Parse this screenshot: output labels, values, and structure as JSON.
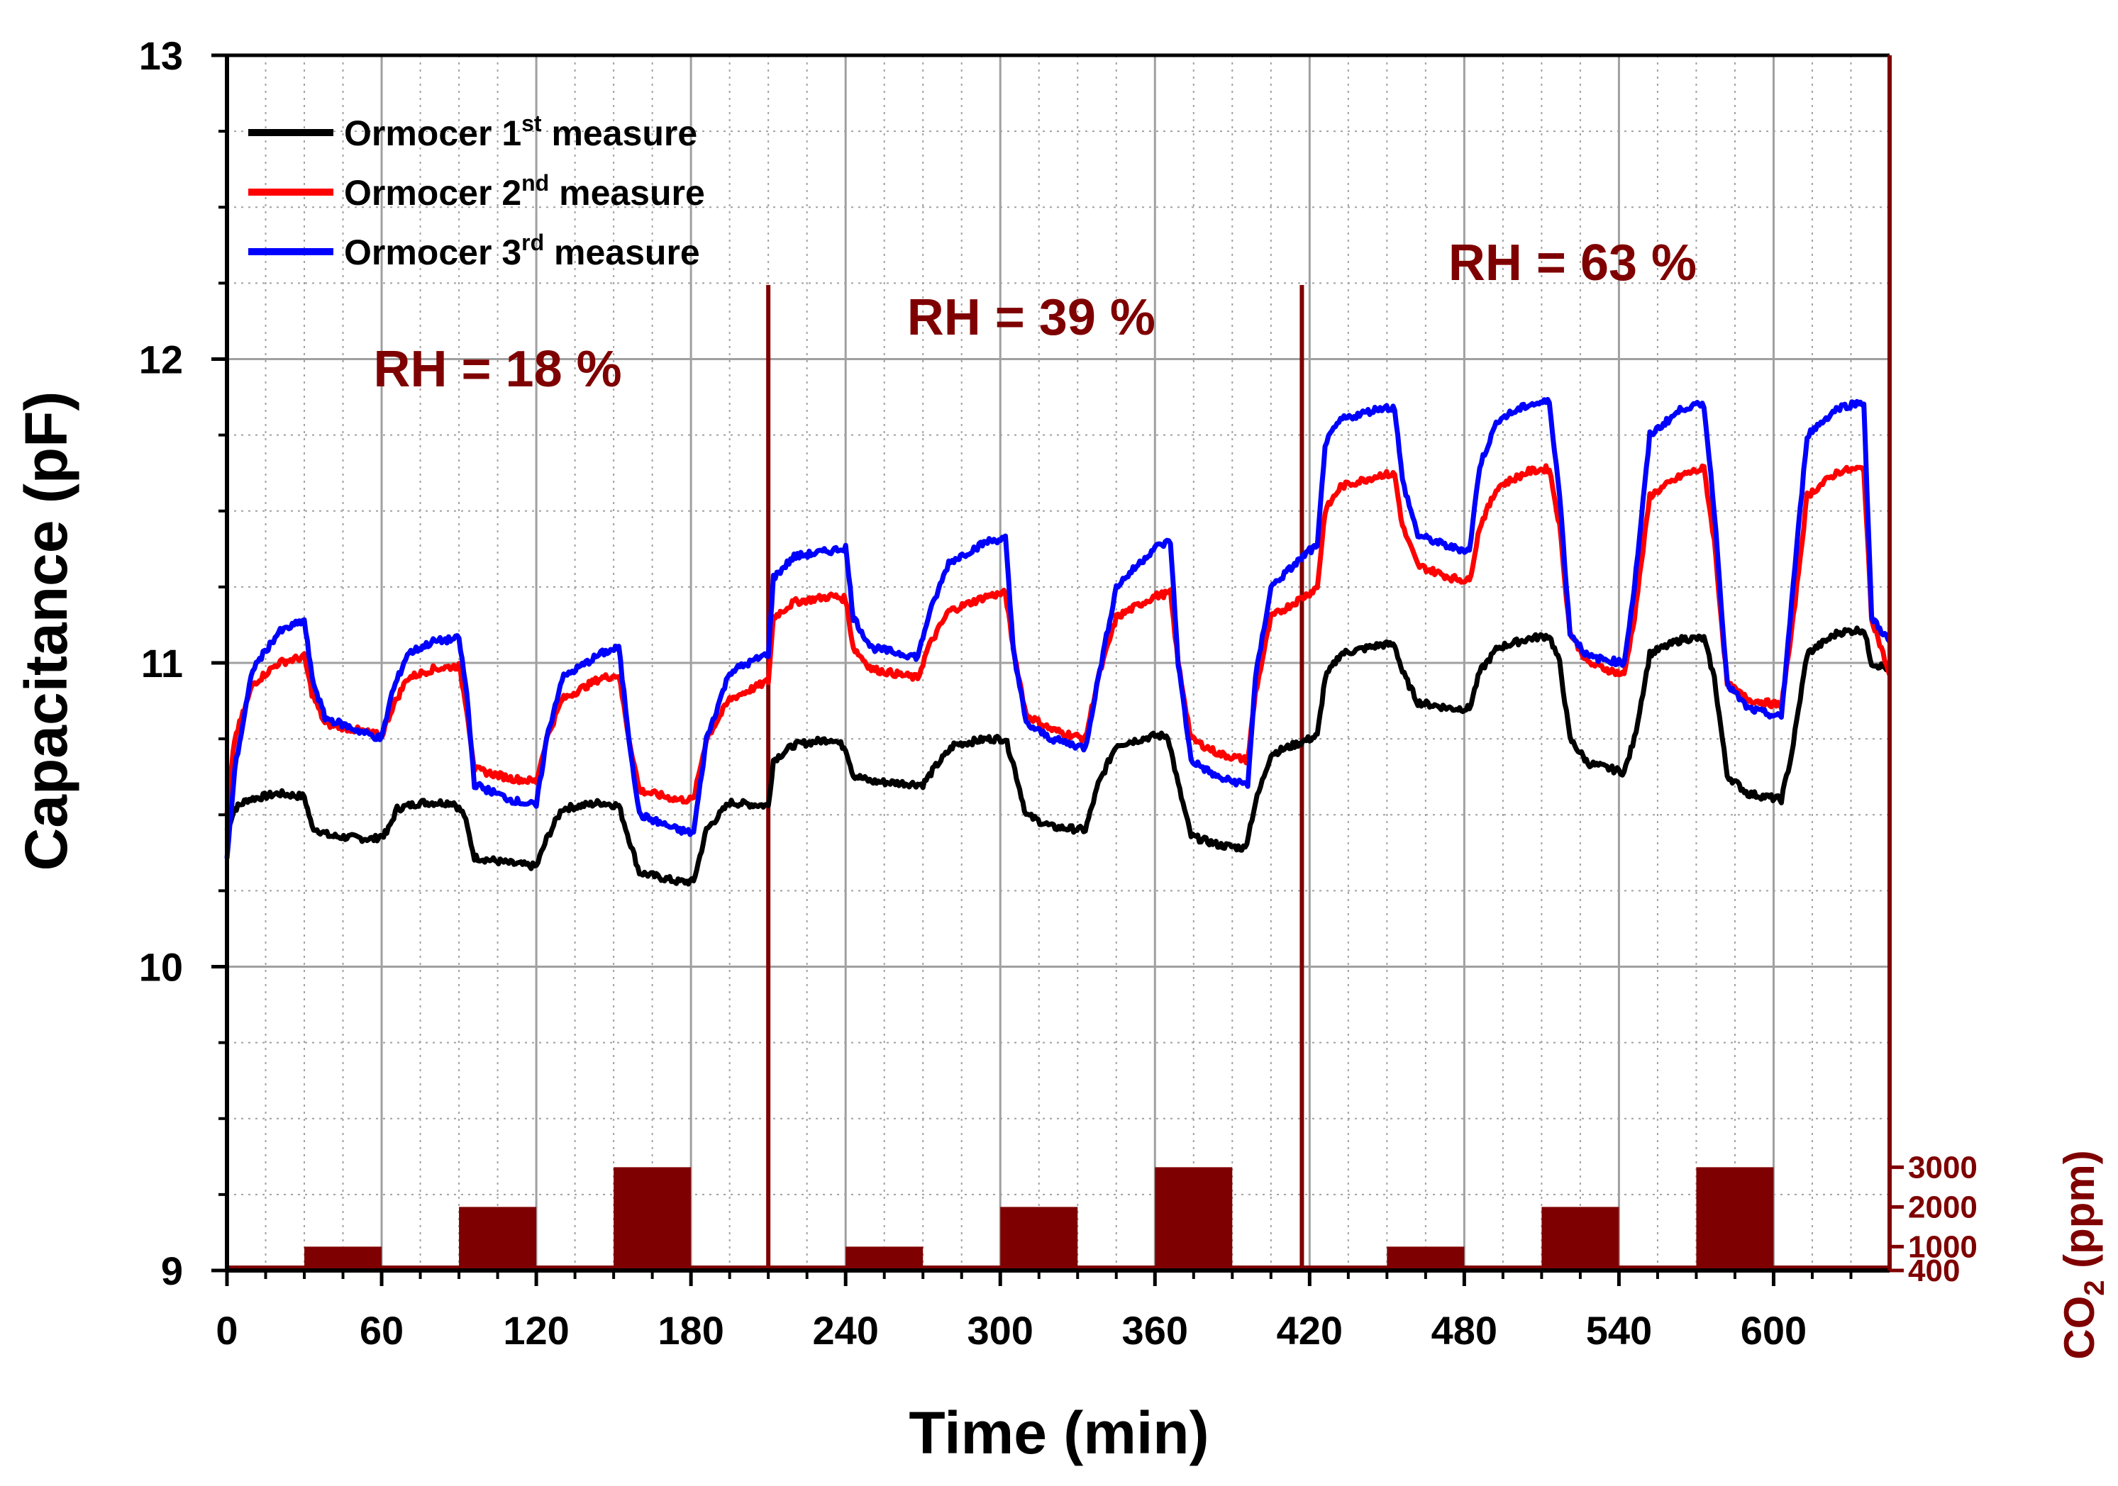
{
  "chart_data": {
    "type": "line",
    "xlabel": "Time (min)",
    "ylabel": "Capacitance (pF)",
    "y2label_main": "CO",
    "y2label_sub": "2",
    "y2label_tail": " (ppm)",
    "xlim": [
      0,
      645
    ],
    "ylim": [
      9,
      13
    ],
    "xticks": [
      0,
      60,
      120,
      180,
      240,
      300,
      360,
      420,
      480,
      540,
      600
    ],
    "yticks": [
      9,
      10,
      11,
      12,
      13
    ],
    "y2ticks": [
      400,
      1000,
      2000,
      3000
    ],
    "y2lim": [
      400,
      31000
    ],
    "grid": true,
    "legend_position": "top-left",
    "colors": {
      "series1": "#000000",
      "series2": "#ff0000",
      "series3": "#0000ff",
      "co2": "#7f0000",
      "grid": "#a0a0a0"
    },
    "series": [
      {
        "name": "Ormocer 1st measure",
        "label_main": "Ormocer 1",
        "label_sup": "st",
        "label_tail": " measure",
        "color": "#000000",
        "points": [
          [
            0,
            10.45
          ],
          [
            3,
            10.52
          ],
          [
            8,
            10.55
          ],
          [
            20,
            10.57
          ],
          [
            30,
            10.56
          ],
          [
            33,
            10.46
          ],
          [
            40,
            10.43
          ],
          [
            57,
            10.42
          ],
          [
            62,
            10.44
          ],
          [
            66,
            10.52
          ],
          [
            75,
            10.54
          ],
          [
            88,
            10.54
          ],
          [
            92,
            10.5
          ],
          [
            96,
            10.36
          ],
          [
            110,
            10.34
          ],
          [
            120,
            10.33
          ],
          [
            124,
            10.42
          ],
          [
            130,
            10.52
          ],
          [
            145,
            10.54
          ],
          [
            152,
            10.53
          ],
          [
            156,
            10.42
          ],
          [
            160,
            10.31
          ],
          [
            175,
            10.28
          ],
          [
            181,
            10.28
          ],
          [
            186,
            10.45
          ],
          [
            195,
            10.54
          ],
          [
            210,
            10.53
          ],
          [
            212,
            10.68
          ],
          [
            220,
            10.73
          ],
          [
            235,
            10.75
          ],
          [
            240,
            10.72
          ],
          [
            243,
            10.63
          ],
          [
            250,
            10.61
          ],
          [
            270,
            10.6
          ],
          [
            275,
            10.66
          ],
          [
            282,
            10.73
          ],
          [
            295,
            10.75
          ],
          [
            302,
            10.75
          ],
          [
            305,
            10.67
          ],
          [
            310,
            10.5
          ],
          [
            320,
            10.46
          ],
          [
            333,
            10.45
          ],
          [
            338,
            10.6
          ],
          [
            345,
            10.73
          ],
          [
            360,
            10.76
          ],
          [
            365,
            10.76
          ],
          [
            369,
            10.6
          ],
          [
            374,
            10.43
          ],
          [
            385,
            10.4
          ],
          [
            395,
            10.39
          ],
          [
            399,
            10.54
          ],
          [
            405,
            10.7
          ],
          [
            420,
            10.75
          ],
          [
            423,
            10.76
          ],
          [
            426,
            10.95
          ],
          [
            432,
            11.03
          ],
          [
            448,
            11.06
          ],
          [
            453,
            11.06
          ],
          [
            456,
            10.97
          ],
          [
            462,
            10.87
          ],
          [
            475,
            10.85
          ],
          [
            482,
            10.85
          ],
          [
            486,
            10.97
          ],
          [
            493,
            11.05
          ],
          [
            505,
            11.08
          ],
          [
            513,
            11.09
          ],
          [
            517,
            11.0
          ],
          [
            521,
            10.75
          ],
          [
            528,
            10.67
          ],
          [
            542,
            10.64
          ],
          [
            546,
            10.75
          ],
          [
            552,
            11.03
          ],
          [
            565,
            11.08
          ],
          [
            573,
            11.08
          ],
          [
            577,
            10.95
          ],
          [
            582,
            10.63
          ],
          [
            590,
            10.57
          ],
          [
            603,
            10.55
          ],
          [
            607,
            10.7
          ],
          [
            613,
            11.03
          ],
          [
            625,
            11.1
          ],
          [
            635,
            11.11
          ],
          [
            638,
            11.0
          ],
          [
            645,
            10.98
          ]
        ]
      },
      {
        "name": "Ormocer 2nd measure",
        "label_main": "Ormocer 2",
        "label_sup": "nd",
        "label_tail": " measure",
        "color": "#ff0000",
        "points": [
          [
            0,
            10.5
          ],
          [
            3,
            10.75
          ],
          [
            10,
            10.93
          ],
          [
            20,
            11.0
          ],
          [
            30,
            11.02
          ],
          [
            33,
            10.9
          ],
          [
            38,
            10.8
          ],
          [
            50,
            10.78
          ],
          [
            60,
            10.76
          ],
          [
            64,
            10.85
          ],
          [
            70,
            10.95
          ],
          [
            80,
            10.98
          ],
          [
            90,
            10.99
          ],
          [
            93,
            10.85
          ],
          [
            96,
            10.65
          ],
          [
            110,
            10.62
          ],
          [
            120,
            10.61
          ],
          [
            124,
            10.75
          ],
          [
            130,
            10.88
          ],
          [
            145,
            10.95
          ],
          [
            152,
            10.96
          ],
          [
            156,
            10.75
          ],
          [
            160,
            10.58
          ],
          [
            175,
            10.55
          ],
          [
            181,
            10.55
          ],
          [
            186,
            10.75
          ],
          [
            195,
            10.88
          ],
          [
            210,
            10.94
          ],
          [
            212,
            11.15
          ],
          [
            220,
            11.2
          ],
          [
            235,
            11.22
          ],
          [
            240,
            11.21
          ],
          [
            243,
            11.05
          ],
          [
            250,
            10.98
          ],
          [
            268,
            10.95
          ],
          [
            272,
            11.05
          ],
          [
            280,
            11.17
          ],
          [
            295,
            11.22
          ],
          [
            302,
            11.23
          ],
          [
            305,
            11.05
          ],
          [
            310,
            10.83
          ],
          [
            320,
            10.78
          ],
          [
            333,
            10.75
          ],
          [
            338,
            10.95
          ],
          [
            345,
            11.15
          ],
          [
            360,
            11.22
          ],
          [
            366,
            11.23
          ],
          [
            369,
            11.0
          ],
          [
            374,
            10.75
          ],
          [
            385,
            10.7
          ],
          [
            396,
            10.68
          ],
          [
            399,
            10.9
          ],
          [
            405,
            11.15
          ],
          [
            420,
            11.23
          ],
          [
            423,
            11.25
          ],
          [
            426,
            11.5
          ],
          [
            432,
            11.58
          ],
          [
            448,
            11.62
          ],
          [
            453,
            11.62
          ],
          [
            456,
            11.45
          ],
          [
            462,
            11.32
          ],
          [
            475,
            11.28
          ],
          [
            482,
            11.27
          ],
          [
            486,
            11.45
          ],
          [
            493,
            11.58
          ],
          [
            505,
            11.63
          ],
          [
            513,
            11.64
          ],
          [
            517,
            11.45
          ],
          [
            521,
            11.1
          ],
          [
            528,
            11.0
          ],
          [
            542,
            10.96
          ],
          [
            546,
            11.15
          ],
          [
            552,
            11.55
          ],
          [
            565,
            11.62
          ],
          [
            573,
            11.64
          ],
          [
            577,
            11.4
          ],
          [
            582,
            10.93
          ],
          [
            590,
            10.88
          ],
          [
            603,
            10.86
          ],
          [
            607,
            11.1
          ],
          [
            613,
            11.55
          ],
          [
            625,
            11.63
          ],
          [
            635,
            11.64
          ],
          [
            638,
            11.15
          ],
          [
            645,
            10.96
          ]
        ]
      },
      {
        "name": "Ormocer 3rd measure",
        "label_main": "Ormocer 3",
        "label_sup": "rd",
        "label_tail": " measure",
        "color": "#0000ff",
        "points": [
          [
            0,
            10.35
          ],
          [
            3,
            10.65
          ],
          [
            10,
            10.98
          ],
          [
            20,
            11.1
          ],
          [
            30,
            11.14
          ],
          [
            33,
            10.95
          ],
          [
            38,
            10.82
          ],
          [
            50,
            10.78
          ],
          [
            60,
            10.75
          ],
          [
            64,
            10.9
          ],
          [
            70,
            11.03
          ],
          [
            80,
            11.07
          ],
          [
            90,
            11.08
          ],
          [
            93,
            10.9
          ],
          [
            96,
            10.6
          ],
          [
            110,
            10.55
          ],
          [
            120,
            10.53
          ],
          [
            124,
            10.75
          ],
          [
            130,
            10.95
          ],
          [
            145,
            11.03
          ],
          [
            152,
            11.05
          ],
          [
            156,
            10.75
          ],
          [
            160,
            10.5
          ],
          [
            175,
            10.45
          ],
          [
            181,
            10.44
          ],
          [
            186,
            10.75
          ],
          [
            195,
            10.97
          ],
          [
            210,
            11.03
          ],
          [
            212,
            11.28
          ],
          [
            220,
            11.35
          ],
          [
            235,
            11.37
          ],
          [
            240,
            11.38
          ],
          [
            243,
            11.15
          ],
          [
            250,
            11.05
          ],
          [
            268,
            11.02
          ],
          [
            272,
            11.15
          ],
          [
            280,
            11.33
          ],
          [
            295,
            11.4
          ],
          [
            302,
            11.41
          ],
          [
            305,
            11.05
          ],
          [
            310,
            10.8
          ],
          [
            320,
            10.75
          ],
          [
            333,
            10.72
          ],
          [
            338,
            10.95
          ],
          [
            345,
            11.25
          ],
          [
            360,
            11.38
          ],
          [
            366,
            11.4
          ],
          [
            369,
            11.0
          ],
          [
            374,
            10.68
          ],
          [
            385,
            10.62
          ],
          [
            396,
            10.6
          ],
          [
            399,
            10.95
          ],
          [
            405,
            11.25
          ],
          [
            420,
            11.37
          ],
          [
            423,
            11.38
          ],
          [
            426,
            11.72
          ],
          [
            432,
            11.8
          ],
          [
            448,
            11.84
          ],
          [
            453,
            11.84
          ],
          [
            456,
            11.6
          ],
          [
            462,
            11.42
          ],
          [
            475,
            11.38
          ],
          [
            482,
            11.37
          ],
          [
            486,
            11.65
          ],
          [
            493,
            11.8
          ],
          [
            505,
            11.85
          ],
          [
            513,
            11.86
          ],
          [
            517,
            11.55
          ],
          [
            521,
            11.1
          ],
          [
            528,
            11.02
          ],
          [
            542,
            11.0
          ],
          [
            546,
            11.25
          ],
          [
            552,
            11.75
          ],
          [
            565,
            11.84
          ],
          [
            573,
            11.85
          ],
          [
            577,
            11.5
          ],
          [
            582,
            10.93
          ],
          [
            590,
            10.85
          ],
          [
            603,
            10.82
          ],
          [
            607,
            11.2
          ],
          [
            613,
            11.75
          ],
          [
            625,
            11.84
          ],
          [
            635,
            11.86
          ],
          [
            638,
            11.15
          ],
          [
            645,
            11.07
          ]
        ]
      }
    ],
    "co2_pulses": [
      {
        "start": 30,
        "end": 60,
        "ppm": 1000
      },
      {
        "start": 90,
        "end": 120,
        "ppm": 2000
      },
      {
        "start": 150,
        "end": 180,
        "ppm": 3000
      },
      {
        "start": 240,
        "end": 270,
        "ppm": 1000
      },
      {
        "start": 300,
        "end": 330,
        "ppm": 2000
      },
      {
        "start": 360,
        "end": 390,
        "ppm": 3000
      },
      {
        "start": 450,
        "end": 480,
        "ppm": 1000
      },
      {
        "start": 510,
        "end": 540,
        "ppm": 2000
      },
      {
        "start": 570,
        "end": 600,
        "ppm": 3000
      }
    ],
    "region_separators": [
      210,
      417
    ],
    "annotations": [
      {
        "text": "RH = 18 %",
        "x": 105,
        "y": 11.91
      },
      {
        "text": "RH = 39 %",
        "x": 312,
        "y": 12.08
      },
      {
        "text": "RH = 63 %",
        "x": 522,
        "y": 12.26
      }
    ]
  }
}
